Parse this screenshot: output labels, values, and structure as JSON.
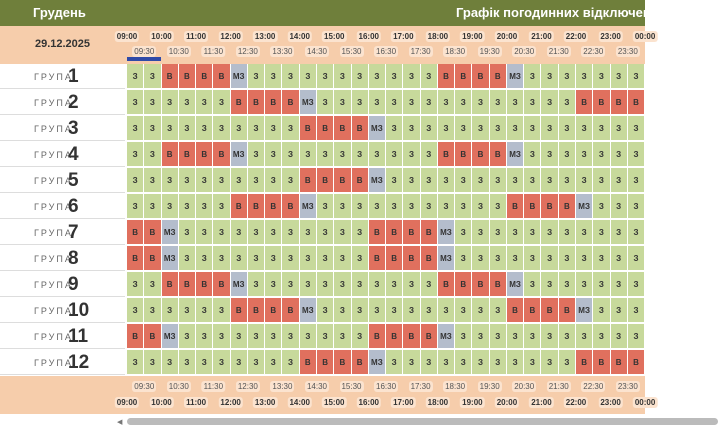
{
  "header": {
    "month": "Грудень",
    "title": "Графік погодинних відключень",
    "date": "29.12.2025"
  },
  "hours": [
    "09:00",
    "10:00",
    "11:00",
    "12:00",
    "13:00",
    "14:00",
    "15:00",
    "16:00",
    "17:00",
    "18:00",
    "19:00",
    "20:00",
    "21:00",
    "22:00",
    "23:00",
    "00:00"
  ],
  "half_hours": [
    "09:30",
    "10:30",
    "11:30",
    "12:30",
    "13:30",
    "14:30",
    "15:30",
    "16:30",
    "17:30",
    "18:30",
    "19:30",
    "20:30",
    "21:30",
    "22:30",
    "23:30"
  ],
  "groups": [
    {
      "label": "ГРУПА",
      "number": "1",
      "cells": [
        "З",
        "З",
        "В",
        "В",
        "В",
        "В",
        "МЗ",
        "З",
        "З",
        "З",
        "З",
        "З",
        "З",
        "З",
        "З",
        "З",
        "З",
        "З",
        "В",
        "В",
        "В",
        "В",
        "МЗ",
        "З",
        "З",
        "З",
        "З",
        "З",
        "З",
        "З"
      ]
    },
    {
      "label": "ГРУПА",
      "number": "2",
      "cells": [
        "З",
        "З",
        "З",
        "З",
        "З",
        "З",
        "В",
        "В",
        "В",
        "В",
        "МЗ",
        "З",
        "З",
        "З",
        "З",
        "З",
        "З",
        "З",
        "З",
        "З",
        "З",
        "З",
        "З",
        "З",
        "З",
        "З",
        "В",
        "В",
        "В",
        "В"
      ]
    },
    {
      "label": "ГРУПА",
      "number": "3",
      "cells": [
        "З",
        "З",
        "З",
        "З",
        "З",
        "З",
        "З",
        "З",
        "З",
        "З",
        "В",
        "В",
        "В",
        "В",
        "МЗ",
        "З",
        "З",
        "З",
        "З",
        "З",
        "З",
        "З",
        "З",
        "З",
        "З",
        "З",
        "З",
        "З",
        "З",
        "З"
      ]
    },
    {
      "label": "ГРУПА",
      "number": "4",
      "cells": [
        "З",
        "З",
        "В",
        "В",
        "В",
        "В",
        "МЗ",
        "З",
        "З",
        "З",
        "З",
        "З",
        "З",
        "З",
        "З",
        "З",
        "З",
        "З",
        "В",
        "В",
        "В",
        "В",
        "МЗ",
        "З",
        "З",
        "З",
        "З",
        "З",
        "З",
        "З"
      ]
    },
    {
      "label": "ГРУПА",
      "number": "5",
      "cells": [
        "З",
        "З",
        "З",
        "З",
        "З",
        "З",
        "З",
        "З",
        "З",
        "З",
        "В",
        "В",
        "В",
        "В",
        "МЗ",
        "З",
        "З",
        "З",
        "З",
        "З",
        "З",
        "З",
        "З",
        "З",
        "З",
        "З",
        "З",
        "З",
        "З",
        "З"
      ]
    },
    {
      "label": "ГРУПА",
      "number": "6",
      "cells": [
        "З",
        "З",
        "З",
        "З",
        "З",
        "З",
        "В",
        "В",
        "В",
        "В",
        "МЗ",
        "З",
        "З",
        "З",
        "З",
        "З",
        "З",
        "З",
        "З",
        "З",
        "З",
        "З",
        "В",
        "В",
        "В",
        "В",
        "МЗ",
        "З",
        "З",
        "З"
      ]
    },
    {
      "label": "ГРУПА",
      "number": "7",
      "cells": [
        "В",
        "В",
        "МЗ",
        "З",
        "З",
        "З",
        "З",
        "З",
        "З",
        "З",
        "З",
        "З",
        "З",
        "З",
        "В",
        "В",
        "В",
        "В",
        "МЗ",
        "З",
        "З",
        "З",
        "З",
        "З",
        "З",
        "З",
        "З",
        "З",
        "З",
        "З"
      ]
    },
    {
      "label": "ГРУПА",
      "number": "8",
      "cells": [
        "В",
        "В",
        "МЗ",
        "З",
        "З",
        "З",
        "З",
        "З",
        "З",
        "З",
        "З",
        "З",
        "З",
        "З",
        "В",
        "В",
        "В",
        "В",
        "МЗ",
        "З",
        "З",
        "З",
        "З",
        "З",
        "З",
        "З",
        "З",
        "З",
        "З",
        "З"
      ]
    },
    {
      "label": "ГРУПА",
      "number": "9",
      "cells": [
        "З",
        "З",
        "В",
        "В",
        "В",
        "В",
        "МЗ",
        "З",
        "З",
        "З",
        "З",
        "З",
        "З",
        "З",
        "З",
        "З",
        "З",
        "З",
        "В",
        "В",
        "В",
        "В",
        "МЗ",
        "З",
        "З",
        "З",
        "З",
        "З",
        "З",
        "З"
      ]
    },
    {
      "label": "ГРУПА",
      "number": "10",
      "cells": [
        "З",
        "З",
        "З",
        "З",
        "З",
        "З",
        "В",
        "В",
        "В",
        "В",
        "МЗ",
        "З",
        "З",
        "З",
        "З",
        "З",
        "З",
        "З",
        "З",
        "З",
        "З",
        "З",
        "В",
        "В",
        "В",
        "В",
        "МЗ",
        "З",
        "З",
        "З"
      ]
    },
    {
      "label": "ГРУПА",
      "number": "11",
      "cells": [
        "В",
        "В",
        "МЗ",
        "З",
        "З",
        "З",
        "З",
        "З",
        "З",
        "З",
        "З",
        "З",
        "З",
        "З",
        "В",
        "В",
        "В",
        "В",
        "МЗ",
        "З",
        "З",
        "З",
        "З",
        "З",
        "З",
        "З",
        "З",
        "З",
        "З",
        "З"
      ]
    },
    {
      "label": "ГРУПА",
      "number": "12",
      "cells": [
        "З",
        "З",
        "З",
        "З",
        "З",
        "З",
        "З",
        "З",
        "З",
        "З",
        "В",
        "В",
        "В",
        "В",
        "МЗ",
        "З",
        "З",
        "З",
        "З",
        "З",
        "З",
        "З",
        "З",
        "З",
        "З",
        "З",
        "В",
        "В",
        "В",
        "В"
      ]
    }
  ]
}
